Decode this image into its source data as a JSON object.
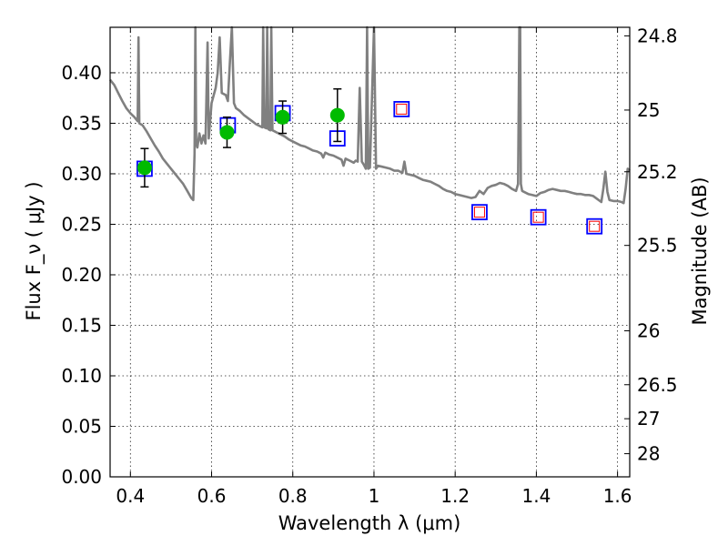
{
  "chart_data": {
    "type": "scatter",
    "xlabel": "Wavelength  λ (μm)",
    "ylabel": "Flux  F_ν  ( μJy )",
    "ylabel_right": "Magnitude (AB)",
    "xlim": [
      0.35,
      1.63
    ],
    "ylim": [
      0.0,
      0.445
    ],
    "grid": true,
    "x_ticks": [
      "0.4",
      "0.6",
      "0.8",
      "1",
      "1.2",
      "1.4",
      "1.6"
    ],
    "x_tick_values": [
      0.4,
      0.6,
      0.8,
      1.0,
      1.2,
      1.4,
      1.6
    ],
    "y_ticks": [
      "0.00",
      "0.05",
      "0.10",
      "0.15",
      "0.20",
      "0.25",
      "0.30",
      "0.35",
      "0.40"
    ],
    "y_tick_values": [
      0.0,
      0.05,
      0.1,
      0.15,
      0.2,
      0.25,
      0.3,
      0.35,
      0.4
    ],
    "right_ticks": [
      {
        "label": "24.8",
        "mag": 24.8
      },
      {
        "label": "25",
        "mag": 25.0
      },
      {
        "label": "25.2",
        "mag": 25.2
      },
      {
        "label": "25.5",
        "mag": 25.5
      },
      {
        "label": "26",
        "mag": 26.0
      },
      {
        "label": "26.5",
        "mag": 26.5
      },
      {
        "label": "27",
        "mag": 27.0
      },
      {
        "label": "28",
        "mag": 28.0
      }
    ],
    "colors": {
      "spectrum": "#808080",
      "observed": "#00bb00",
      "model_box": "#0000ff",
      "model_inner": "#ff0000",
      "errorbar": "#000000"
    },
    "series": [
      {
        "kind": "observed-points",
        "points": [
          {
            "x": 0.435,
            "y": 0.306,
            "err": 0.019
          },
          {
            "x": 0.638,
            "y": 0.341,
            "err": 0.015
          },
          {
            "x": 0.775,
            "y": 0.356,
            "err": 0.016
          },
          {
            "x": 0.91,
            "y": 0.358,
            "err": 0.026
          }
        ]
      },
      {
        "kind": "model-boxes",
        "points": [
          {
            "x": 0.435,
            "y": 0.305
          },
          {
            "x": 0.64,
            "y": 0.348
          },
          {
            "x": 0.775,
            "y": 0.36
          },
          {
            "x": 0.91,
            "y": 0.335
          },
          {
            "x": 1.068,
            "y": 0.364
          },
          {
            "x": 1.26,
            "y": 0.262
          },
          {
            "x": 1.405,
            "y": 0.257
          },
          {
            "x": 1.543,
            "y": 0.248
          }
        ]
      },
      {
        "kind": "model-inner-boxes",
        "points": [
          {
            "x": 1.068,
            "y": 0.364
          },
          {
            "x": 1.26,
            "y": 0.262
          },
          {
            "x": 1.405,
            "y": 0.257
          },
          {
            "x": 1.543,
            "y": 0.248
          }
        ]
      },
      {
        "kind": "spectrum",
        "points": [
          [
            0.35,
            0.393
          ],
          [
            0.36,
            0.388
          ],
          [
            0.37,
            0.38
          ],
          [
            0.38,
            0.372
          ],
          [
            0.39,
            0.365
          ],
          [
            0.4,
            0.36
          ],
          [
            0.41,
            0.356
          ],
          [
            0.418,
            0.352
          ],
          [
            0.42,
            0.435
          ],
          [
            0.422,
            0.35
          ],
          [
            0.43,
            0.348
          ],
          [
            0.44,
            0.342
          ],
          [
            0.45,
            0.335
          ],
          [
            0.46,
            0.328
          ],
          [
            0.47,
            0.322
          ],
          [
            0.48,
            0.315
          ],
          [
            0.49,
            0.31
          ],
          [
            0.5,
            0.305
          ],
          [
            0.51,
            0.3
          ],
          [
            0.52,
            0.295
          ],
          [
            0.53,
            0.29
          ],
          [
            0.54,
            0.283
          ],
          [
            0.55,
            0.276
          ],
          [
            0.555,
            0.274
          ],
          [
            0.558,
            0.32
          ],
          [
            0.56,
            0.445
          ],
          [
            0.562,
            0.33
          ],
          [
            0.565,
            0.326
          ],
          [
            0.57,
            0.34
          ],
          [
            0.575,
            0.33
          ],
          [
            0.58,
            0.338
          ],
          [
            0.585,
            0.33
          ],
          [
            0.59,
            0.43
          ],
          [
            0.593,
            0.335
          ],
          [
            0.6,
            0.37
          ],
          [
            0.61,
            0.385
          ],
          [
            0.615,
            0.4
          ],
          [
            0.62,
            0.435
          ],
          [
            0.625,
            0.38
          ],
          [
            0.635,
            0.378
          ],
          [
            0.64,
            0.372
          ],
          [
            0.645,
            0.41
          ],
          [
            0.65,
            0.445
          ],
          [
            0.655,
            0.37
          ],
          [
            0.66,
            0.365
          ],
          [
            0.67,
            0.362
          ],
          [
            0.68,
            0.358
          ],
          [
            0.69,
            0.355
          ],
          [
            0.7,
            0.352
          ],
          [
            0.71,
            0.349
          ],
          [
            0.72,
            0.347
          ],
          [
            0.725,
            0.346
          ],
          [
            0.727,
            0.445
          ],
          [
            0.73,
            0.346
          ],
          [
            0.735,
            0.345
          ],
          [
            0.737,
            0.445
          ],
          [
            0.74,
            0.344
          ],
          [
            0.745,
            0.343
          ],
          [
            0.747,
            0.445
          ],
          [
            0.75,
            0.343
          ],
          [
            0.755,
            0.342
          ],
          [
            0.76,
            0.341
          ],
          [
            0.765,
            0.34
          ],
          [
            0.77,
            0.339
          ],
          [
            0.78,
            0.337
          ],
          [
            0.79,
            0.334
          ],
          [
            0.8,
            0.332
          ],
          [
            0.81,
            0.33
          ],
          [
            0.82,
            0.328
          ],
          [
            0.83,
            0.327
          ],
          [
            0.84,
            0.325
          ],
          [
            0.85,
            0.323
          ],
          [
            0.86,
            0.322
          ],
          [
            0.87,
            0.32
          ],
          [
            0.875,
            0.316
          ],
          [
            0.88,
            0.321
          ],
          [
            0.89,
            0.319
          ],
          [
            0.9,
            0.318
          ],
          [
            0.91,
            0.316
          ],
          [
            0.92,
            0.314
          ],
          [
            0.925,
            0.308
          ],
          [
            0.93,
            0.315
          ],
          [
            0.94,
            0.313
          ],
          [
            0.95,
            0.311
          ],
          [
            0.955,
            0.313
          ],
          [
            0.96,
            0.312
          ],
          [
            0.965,
            0.385
          ],
          [
            0.97,
            0.312
          ],
          [
            0.975,
            0.309
          ],
          [
            0.98,
            0.305
          ],
          [
            0.983,
            0.445
          ],
          [
            0.986,
            0.305
          ],
          [
            0.99,
            0.306
          ],
          [
            1.0,
            0.445
          ],
          [
            1.005,
            0.305
          ],
          [
            1.01,
            0.308
          ],
          [
            1.02,
            0.307
          ],
          [
            1.03,
            0.306
          ],
          [
            1.04,
            0.305
          ],
          [
            1.05,
            0.303
          ],
          [
            1.06,
            0.303
          ],
          [
            1.07,
            0.301
          ],
          [
            1.075,
            0.312
          ],
          [
            1.08,
            0.3
          ],
          [
            1.09,
            0.299
          ],
          [
            1.1,
            0.298
          ],
          [
            1.11,
            0.296
          ],
          [
            1.12,
            0.294
          ],
          [
            1.13,
            0.293
          ],
          [
            1.14,
            0.292
          ],
          [
            1.15,
            0.29
          ],
          [
            1.16,
            0.288
          ],
          [
            1.17,
            0.285
          ],
          [
            1.18,
            0.283
          ],
          [
            1.19,
            0.282
          ],
          [
            1.2,
            0.28
          ],
          [
            1.21,
            0.279
          ],
          [
            1.22,
            0.278
          ],
          [
            1.23,
            0.277
          ],
          [
            1.24,
            0.276
          ],
          [
            1.25,
            0.277
          ],
          [
            1.26,
            0.283
          ],
          [
            1.27,
            0.28
          ],
          [
            1.28,
            0.286
          ],
          [
            1.29,
            0.288
          ],
          [
            1.3,
            0.289
          ],
          [
            1.31,
            0.291
          ],
          [
            1.32,
            0.29
          ],
          [
            1.33,
            0.288
          ],
          [
            1.34,
            0.285
          ],
          [
            1.35,
            0.283
          ],
          [
            1.355,
            0.29
          ],
          [
            1.358,
            0.445
          ],
          [
            1.36,
            0.445
          ],
          [
            1.362,
            0.29
          ],
          [
            1.365,
            0.283
          ],
          [
            1.37,
            0.282
          ],
          [
            1.38,
            0.28
          ],
          [
            1.39,
            0.279
          ],
          [
            1.4,
            0.278
          ],
          [
            1.41,
            0.281
          ],
          [
            1.42,
            0.282
          ],
          [
            1.43,
            0.284
          ],
          [
            1.44,
            0.285
          ],
          [
            1.45,
            0.284
          ],
          [
            1.46,
            0.283
          ],
          [
            1.47,
            0.283
          ],
          [
            1.48,
            0.282
          ],
          [
            1.49,
            0.281
          ],
          [
            1.5,
            0.28
          ],
          [
            1.51,
            0.28
          ],
          [
            1.52,
            0.279
          ],
          [
            1.53,
            0.279
          ],
          [
            1.54,
            0.278
          ],
          [
            1.55,
            0.275
          ],
          [
            1.56,
            0.272
          ],
          [
            1.565,
            0.285
          ],
          [
            1.57,
            0.302
          ],
          [
            1.575,
            0.282
          ],
          [
            1.58,
            0.274
          ],
          [
            1.59,
            0.273
          ],
          [
            1.6,
            0.273
          ],
          [
            1.61,
            0.272
          ],
          [
            1.615,
            0.271
          ],
          [
            1.62,
            0.285
          ],
          [
            1.625,
            0.305
          ],
          [
            1.63,
            0.303
          ]
        ]
      }
    ]
  }
}
